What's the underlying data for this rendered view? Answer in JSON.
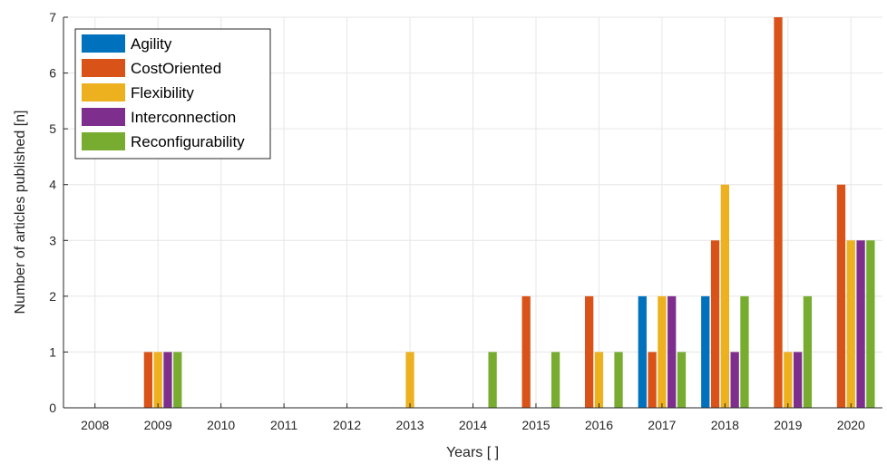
{
  "chart_data": {
    "type": "bar",
    "xlabel": "Years [ ]",
    "ylabel": "Number of articles published [n]",
    "categories": [
      "2008",
      "2009",
      "2010",
      "2011",
      "2012",
      "2013",
      "2014",
      "2015",
      "2016",
      "2017",
      "2018",
      "2019",
      "2020"
    ],
    "ylim": [
      0,
      7
    ],
    "yticks": [
      0,
      1,
      2,
      3,
      4,
      5,
      6,
      7
    ],
    "grid": true,
    "legend_position": "top-left",
    "series": [
      {
        "name": "Agility",
        "color": "#0072BD",
        "values": [
          0,
          0,
          0,
          0,
          0,
          0,
          0,
          0,
          0,
          2,
          2,
          0,
          0
        ]
      },
      {
        "name": "CostOriented",
        "color": "#D95319",
        "values": [
          0,
          1,
          0,
          0,
          0,
          0,
          0,
          2,
          2,
          1,
          3,
          7,
          4
        ]
      },
      {
        "name": "Flexibility",
        "color": "#EDB120",
        "values": [
          0,
          1,
          0,
          0,
          0,
          1,
          0,
          0,
          1,
          2,
          4,
          1,
          3
        ]
      },
      {
        "name": "Interconnection",
        "color": "#7E2F8E",
        "values": [
          0,
          1,
          0,
          0,
          0,
          0,
          0,
          0,
          0,
          2,
          1,
          1,
          3
        ]
      },
      {
        "name": "Reconfigurability",
        "color": "#77AC30",
        "values": [
          0,
          1,
          0,
          0,
          0,
          0,
          1,
          1,
          1,
          1,
          2,
          2,
          3
        ]
      }
    ]
  }
}
